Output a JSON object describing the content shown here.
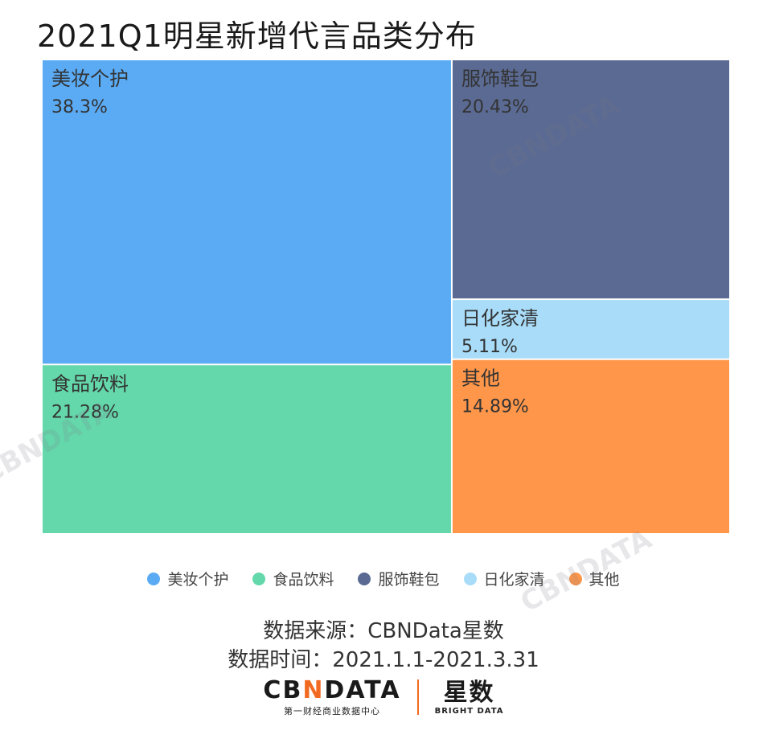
{
  "title": "2021Q1明星新增代言品类分布",
  "chart_data": {
    "type": "treemap",
    "title": "2021Q1明星新增代言品类分布",
    "unit": "%",
    "series": [
      {
        "name": "美妆个护",
        "value": 38.3,
        "label": "38.3%",
        "color": "#5aabf4"
      },
      {
        "name": "食品饮料",
        "value": 21.28,
        "label": "21.28%",
        "color": "#64d8ab"
      },
      {
        "name": "服饰鞋包",
        "value": 20.43,
        "label": "20.43%",
        "color": "#5a6a92"
      },
      {
        "name": "日化家清",
        "value": 5.11,
        "label": "5.11%",
        "color": "#a8dcf8"
      },
      {
        "name": "其他",
        "value": 14.89,
        "label": "14.89%",
        "color": "#ff964a"
      }
    ],
    "legend_position": "bottom-center"
  },
  "footer": {
    "source": "数据来源：CBNData星数",
    "period": "数据时间：2021.1.1-2021.3.31"
  },
  "logo": {
    "left_main_a": "CB",
    "left_main_accent": "N",
    "left_main_b": "DATA",
    "left_sub": "第一财经商业数据中心",
    "right_main": "星数",
    "right_sub": "BRIGHT DATA"
  },
  "watermark": {
    "text": "CBNDATA",
    "sub": "第一财经商业数据中心"
  }
}
